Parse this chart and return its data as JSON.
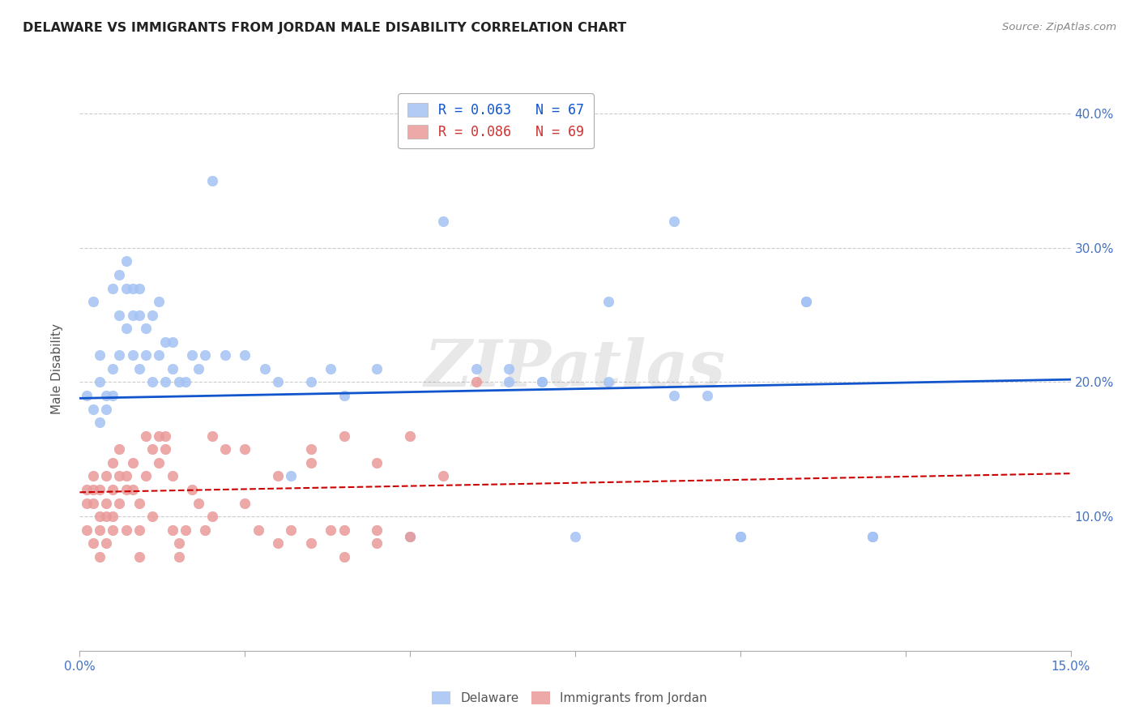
{
  "title": "DELAWARE VS IMMIGRANTS FROM JORDAN MALE DISABILITY CORRELATION CHART",
  "source": "Source: ZipAtlas.com",
  "ylabel_label": "Male Disability",
  "watermark": "ZIPatlas",
  "xlim": [
    0.0,
    0.15
  ],
  "ylim": [
    0.0,
    0.42
  ],
  "xtick_positions": [
    0.0,
    0.025,
    0.05,
    0.075,
    0.1,
    0.125,
    0.15
  ],
  "xtick_labels": [
    "0.0%",
    "",
    "",
    "",
    "",
    "",
    "15.0%"
  ],
  "ytick_positions": [
    0.1,
    0.2,
    0.3,
    0.4
  ],
  "ytick_labels": [
    "10.0%",
    "20.0%",
    "30.0%",
    "40.0%"
  ],
  "delaware_color": "#a4c2f4",
  "jordan_color": "#ea9999",
  "delaware_line_color": "#1155cc",
  "jordan_line_color": "#cc0000",
  "legend_R1": "R = 0.063",
  "legend_N1": "N = 67",
  "legend_R2": "R = 0.086",
  "legend_N2": "N = 69",
  "del_line_x0": 0.0,
  "del_line_x1": 0.15,
  "del_line_y0": 0.188,
  "del_line_y1": 0.202,
  "jor_line_x0": 0.0,
  "jor_line_x1": 0.15,
  "jor_line_y0": 0.118,
  "jor_line_y1": 0.132,
  "delaware_x": [
    0.001,
    0.002,
    0.002,
    0.003,
    0.003,
    0.003,
    0.004,
    0.004,
    0.005,
    0.005,
    0.005,
    0.006,
    0.006,
    0.006,
    0.007,
    0.007,
    0.007,
    0.008,
    0.008,
    0.008,
    0.009,
    0.009,
    0.009,
    0.01,
    0.01,
    0.011,
    0.011,
    0.012,
    0.012,
    0.013,
    0.013,
    0.014,
    0.014,
    0.015,
    0.016,
    0.017,
    0.018,
    0.019,
    0.02,
    0.022,
    0.025,
    0.028,
    0.03,
    0.032,
    0.035,
    0.038,
    0.04,
    0.045,
    0.05,
    0.055,
    0.06,
    0.065,
    0.07,
    0.075,
    0.08,
    0.09,
    0.095,
    0.1,
    0.11,
    0.12,
    0.065,
    0.07,
    0.08,
    0.09,
    0.1,
    0.11,
    0.12
  ],
  "delaware_y": [
    0.19,
    0.18,
    0.26,
    0.2,
    0.17,
    0.22,
    0.19,
    0.18,
    0.21,
    0.19,
    0.27,
    0.28,
    0.25,
    0.22,
    0.29,
    0.27,
    0.24,
    0.27,
    0.25,
    0.22,
    0.27,
    0.25,
    0.21,
    0.24,
    0.22,
    0.25,
    0.2,
    0.26,
    0.22,
    0.23,
    0.2,
    0.21,
    0.23,
    0.2,
    0.2,
    0.22,
    0.21,
    0.22,
    0.35,
    0.22,
    0.22,
    0.21,
    0.2,
    0.13,
    0.2,
    0.21,
    0.19,
    0.21,
    0.085,
    0.32,
    0.21,
    0.2,
    0.2,
    0.085,
    0.2,
    0.32,
    0.19,
    0.085,
    0.26,
    0.085,
    0.21,
    0.2,
    0.26,
    0.19,
    0.085,
    0.26,
    0.085
  ],
  "jordan_x": [
    0.001,
    0.001,
    0.001,
    0.002,
    0.002,
    0.002,
    0.002,
    0.003,
    0.003,
    0.003,
    0.003,
    0.004,
    0.004,
    0.004,
    0.004,
    0.005,
    0.005,
    0.005,
    0.005,
    0.006,
    0.006,
    0.006,
    0.007,
    0.007,
    0.007,
    0.008,
    0.008,
    0.009,
    0.009,
    0.009,
    0.01,
    0.01,
    0.011,
    0.011,
    0.012,
    0.012,
    0.013,
    0.013,
    0.014,
    0.014,
    0.015,
    0.015,
    0.016,
    0.017,
    0.018,
    0.019,
    0.02,
    0.022,
    0.025,
    0.027,
    0.03,
    0.032,
    0.035,
    0.038,
    0.04,
    0.045,
    0.02,
    0.025,
    0.03,
    0.035,
    0.04,
    0.045,
    0.035,
    0.04,
    0.045,
    0.05,
    0.05,
    0.055,
    0.06
  ],
  "jordan_y": [
    0.12,
    0.11,
    0.09,
    0.13,
    0.12,
    0.11,
    0.08,
    0.12,
    0.1,
    0.09,
    0.07,
    0.13,
    0.11,
    0.1,
    0.08,
    0.14,
    0.12,
    0.1,
    0.09,
    0.15,
    0.13,
    0.11,
    0.13,
    0.12,
    0.09,
    0.14,
    0.12,
    0.11,
    0.09,
    0.07,
    0.16,
    0.13,
    0.15,
    0.1,
    0.14,
    0.16,
    0.15,
    0.16,
    0.13,
    0.09,
    0.08,
    0.07,
    0.09,
    0.12,
    0.11,
    0.09,
    0.1,
    0.15,
    0.11,
    0.09,
    0.08,
    0.09,
    0.08,
    0.09,
    0.16,
    0.14,
    0.16,
    0.15,
    0.13,
    0.14,
    0.09,
    0.08,
    0.15,
    0.07,
    0.09,
    0.16,
    0.085,
    0.13,
    0.2
  ]
}
